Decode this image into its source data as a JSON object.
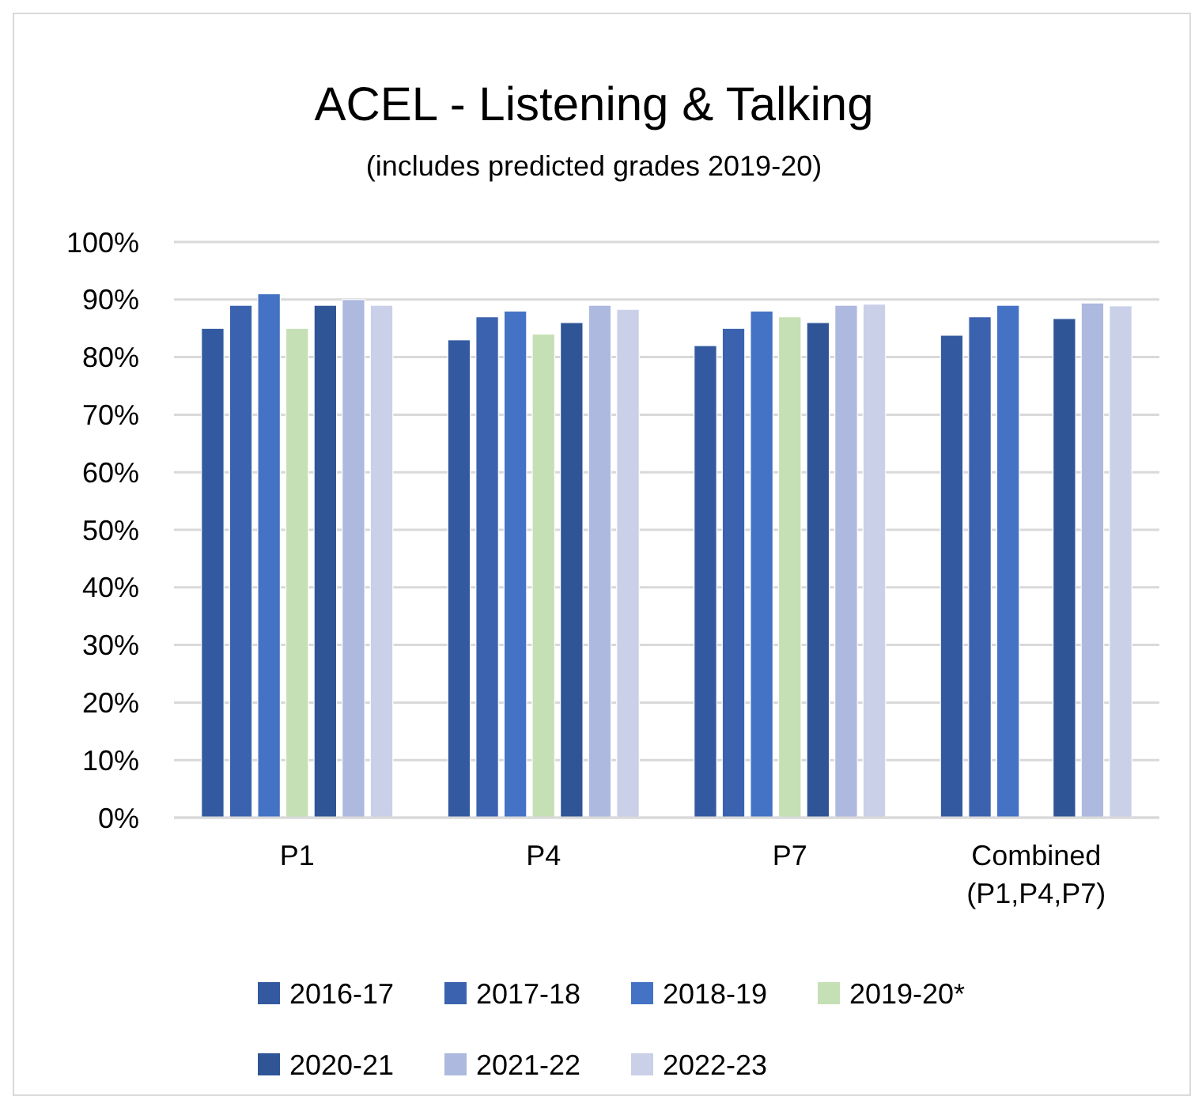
{
  "chart_data": {
    "type": "bar",
    "title": "ACEL - Listening & Talking",
    "subtitle": "(includes predicted grades 2019-20)",
    "categories": [
      "P1",
      "P4",
      "P7",
      "Combined\n(P1,P4,P7)"
    ],
    "series": [
      {
        "name": "2016-17",
        "color": "#335aa0",
        "values": [
          85,
          83,
          82,
          83.8
        ]
      },
      {
        "name": "2017-18",
        "color": "#3a62ae",
        "values": [
          89,
          87,
          85,
          87
        ]
      },
      {
        "name": "2018-19",
        "color": "#4472c4",
        "values": [
          91,
          88,
          88,
          89
        ]
      },
      {
        "name": "2019-20*",
        "color": "#c5e0b4",
        "values": [
          85,
          84,
          87,
          null
        ]
      },
      {
        "name": "2020-21",
        "color": "#2f5597",
        "values": [
          89,
          86,
          86,
          86.7
        ]
      },
      {
        "name": "2021-22",
        "color": "#adb9de",
        "values": [
          90,
          89,
          89,
          89.4
        ]
      },
      {
        "name": "2022-23",
        "color": "#c9d0e8",
        "values": [
          89,
          88.3,
          89.2,
          88.9
        ]
      }
    ],
    "ylim": [
      0,
      100
    ],
    "yticks": [
      {
        "value": 0,
        "label": "0%"
      },
      {
        "value": 10,
        "label": "10%"
      },
      {
        "value": 20,
        "label": "20%"
      },
      {
        "value": 30,
        "label": "30%"
      },
      {
        "value": 40,
        "label": "40%"
      },
      {
        "value": 50,
        "label": "50%"
      },
      {
        "value": 60,
        "label": "60%"
      },
      {
        "value": 70,
        "label": "70%"
      },
      {
        "value": 80,
        "label": "80%"
      },
      {
        "value": 90,
        "label": "90%"
      },
      {
        "value": 100,
        "label": "100%"
      }
    ],
    "grid": "y",
    "legend": "bottom"
  }
}
